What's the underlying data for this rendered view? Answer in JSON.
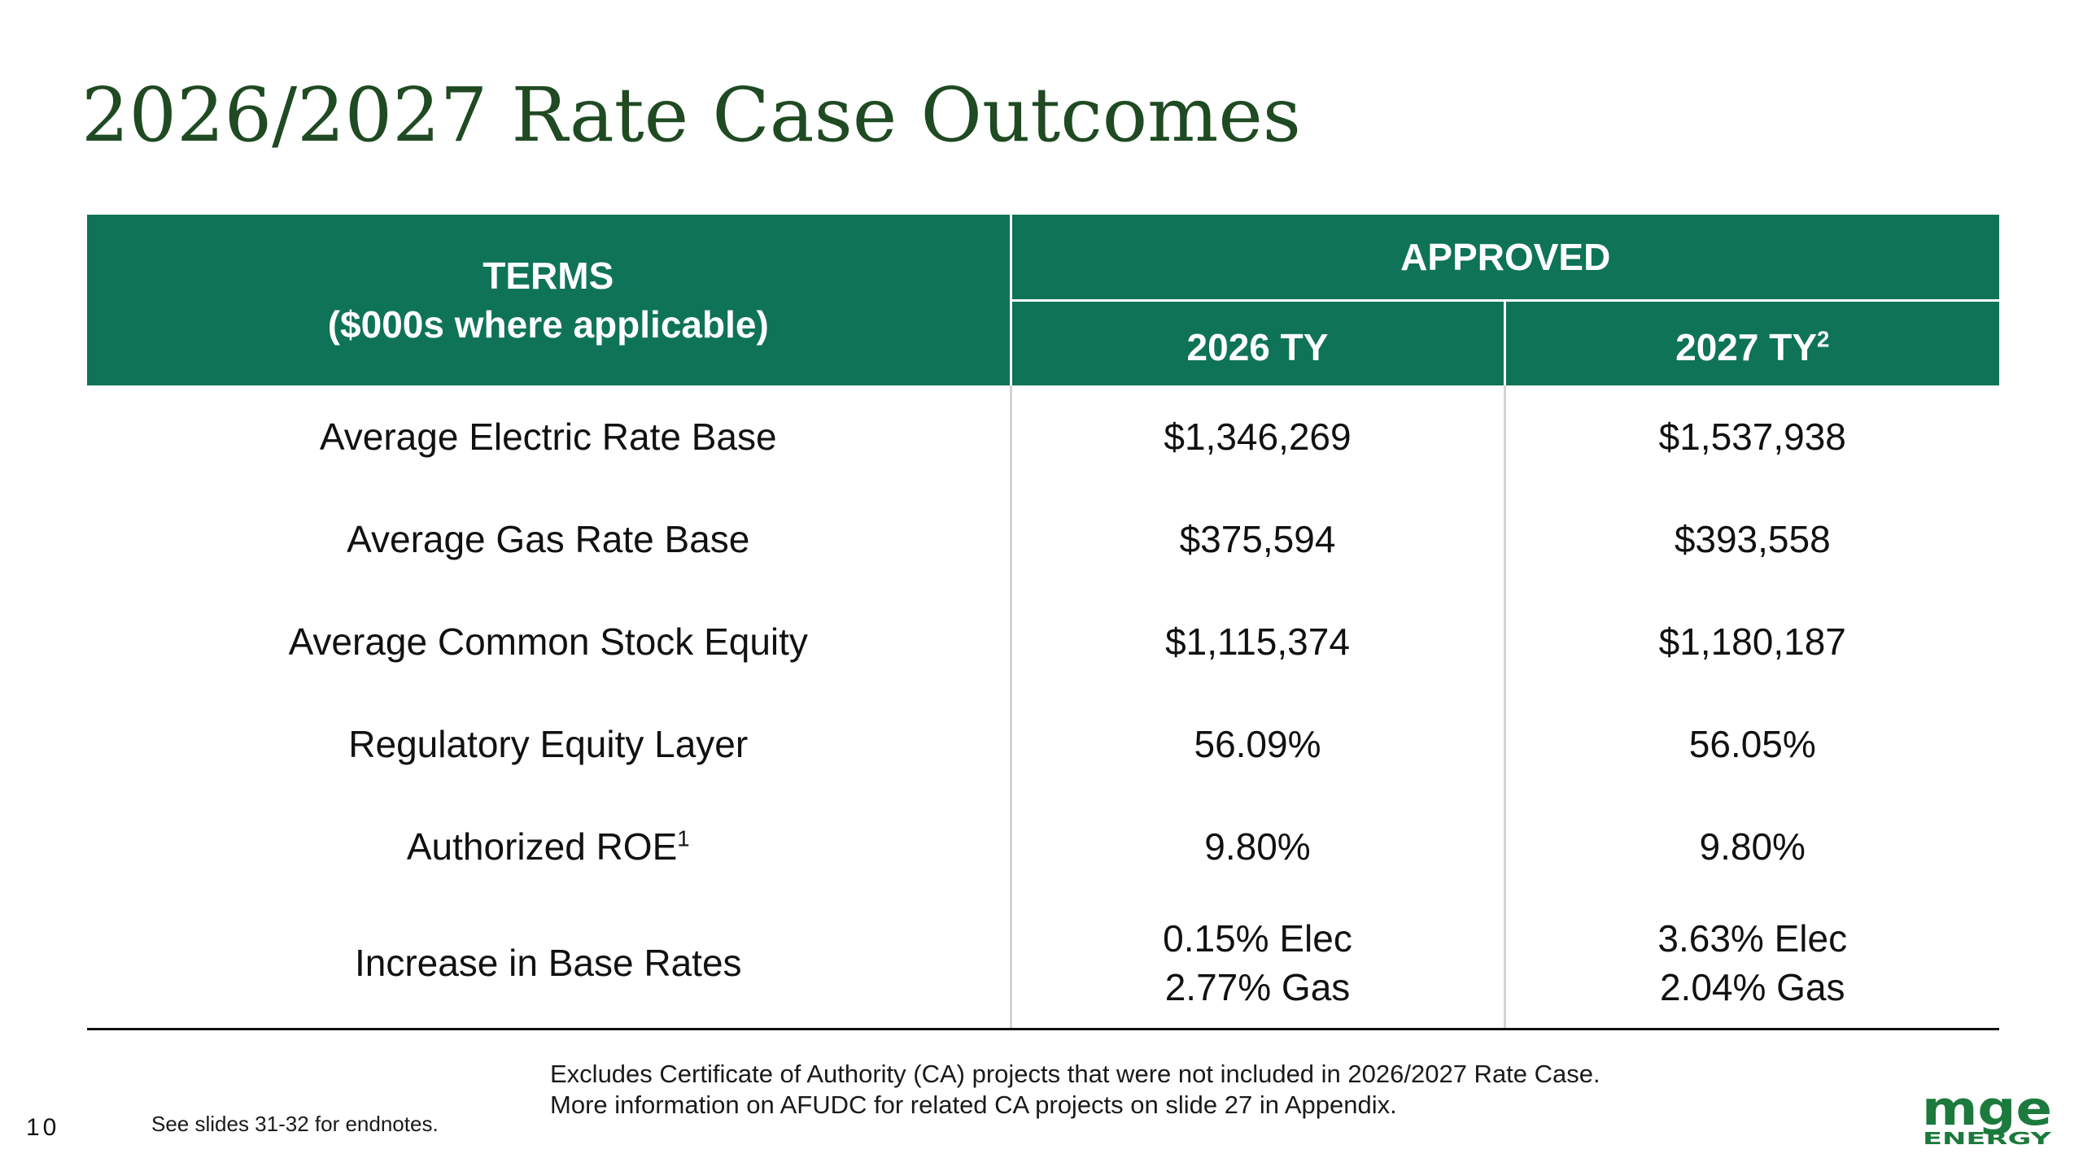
{
  "slide": {
    "title": "2026/2027 Rate Case Outcomes",
    "page_number": "10"
  },
  "table": {
    "terms_header_line1": "TERMS",
    "terms_header_line2": "($000s where applicable)",
    "approved_header": "APPROVED",
    "year1_header": "2026 TY",
    "year2_header": "2027 TY",
    "year2_header_sup": "2",
    "rows": [
      {
        "term": "Average Electric Rate Base",
        "term_sup": "",
        "y2026": "$1,346,269",
        "y2027": "$1,537,938"
      },
      {
        "term": "Average Gas Rate Base",
        "term_sup": "",
        "y2026": "$375,594",
        "y2027": "$393,558"
      },
      {
        "term": "Average Common Stock Equity",
        "term_sup": "",
        "y2026": "$1,115,374",
        "y2027": "$1,180,187"
      },
      {
        "term": "Regulatory Equity Layer",
        "term_sup": "",
        "y2026": "56.09%",
        "y2027": "56.05%"
      },
      {
        "term": "Authorized ROE",
        "term_sup": "1",
        "y2026": "9.80%",
        "y2027": "9.80%"
      }
    ],
    "last_row": {
      "term": "Increase in Base Rates",
      "y2026_line1": "0.15% Elec",
      "y2026_line2": "2.77% Gas",
      "y2027_line1": "3.63% Elec",
      "y2027_line2": "2.04% Gas"
    }
  },
  "footnotes": {
    "note_line1": "Excludes Certificate of Authority (CA) projects that were not included in 2026/2027 Rate Case.",
    "note_line2": "More information on AFUDC for related CA projects on slide 27 in Appendix.",
    "endnotes": "See slides 31-32 for endnotes."
  },
  "logo": {
    "text_top": "mge",
    "text_bottom": "ENERGY",
    "color": "#1b7a3c"
  },
  "colors": {
    "header_bg": "#0f7357",
    "title": "#1f4a22"
  }
}
